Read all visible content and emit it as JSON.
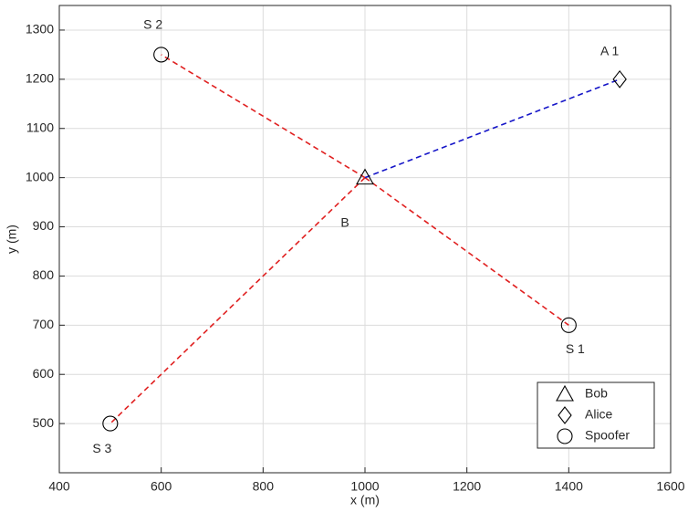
{
  "chart_data": {
    "type": "scatter",
    "xlabel": "x (m)",
    "ylabel": "y (m)",
    "xlim": [
      400,
      1600
    ],
    "ylim": [
      400,
      1350
    ],
    "xticks": [
      400,
      600,
      800,
      1000,
      1200,
      1400,
      1600
    ],
    "yticks": [
      500,
      600,
      700,
      800,
      900,
      1000,
      1100,
      1200,
      1300
    ],
    "grid": true,
    "legend": "lower right",
    "series": [
      {
        "name": "Bob",
        "marker": "triangle",
        "color": "#000000",
        "x": [
          1000
        ],
        "y": [
          1000
        ],
        "point_labels": [
          "B"
        ]
      },
      {
        "name": "Alice",
        "marker": "diamond",
        "color": "#000000",
        "x": [
          1500
        ],
        "y": [
          1200
        ],
        "point_labels": [
          "A 1"
        ]
      },
      {
        "name": "Spoofer",
        "marker": "circle",
        "color": "#000000",
        "x": [
          1400,
          600,
          500
        ],
        "y": [
          700,
          1250,
          500
        ],
        "point_labels": [
          "S 1",
          "S 2",
          "S 3"
        ]
      }
    ],
    "links": [
      {
        "color": "#e02020",
        "x": [
          1000,
          1400
        ],
        "y": [
          1000,
          700
        ]
      },
      {
        "color": "#e02020",
        "x": [
          1000,
          600
        ],
        "y": [
          1000,
          1250
        ]
      },
      {
        "color": "#e02020",
        "x": [
          1000,
          500
        ],
        "y": [
          1000,
          500
        ]
      },
      {
        "color": "#1515c8",
        "x": [
          1000,
          1500
        ],
        "y": [
          1000,
          1200
        ]
      }
    ]
  }
}
